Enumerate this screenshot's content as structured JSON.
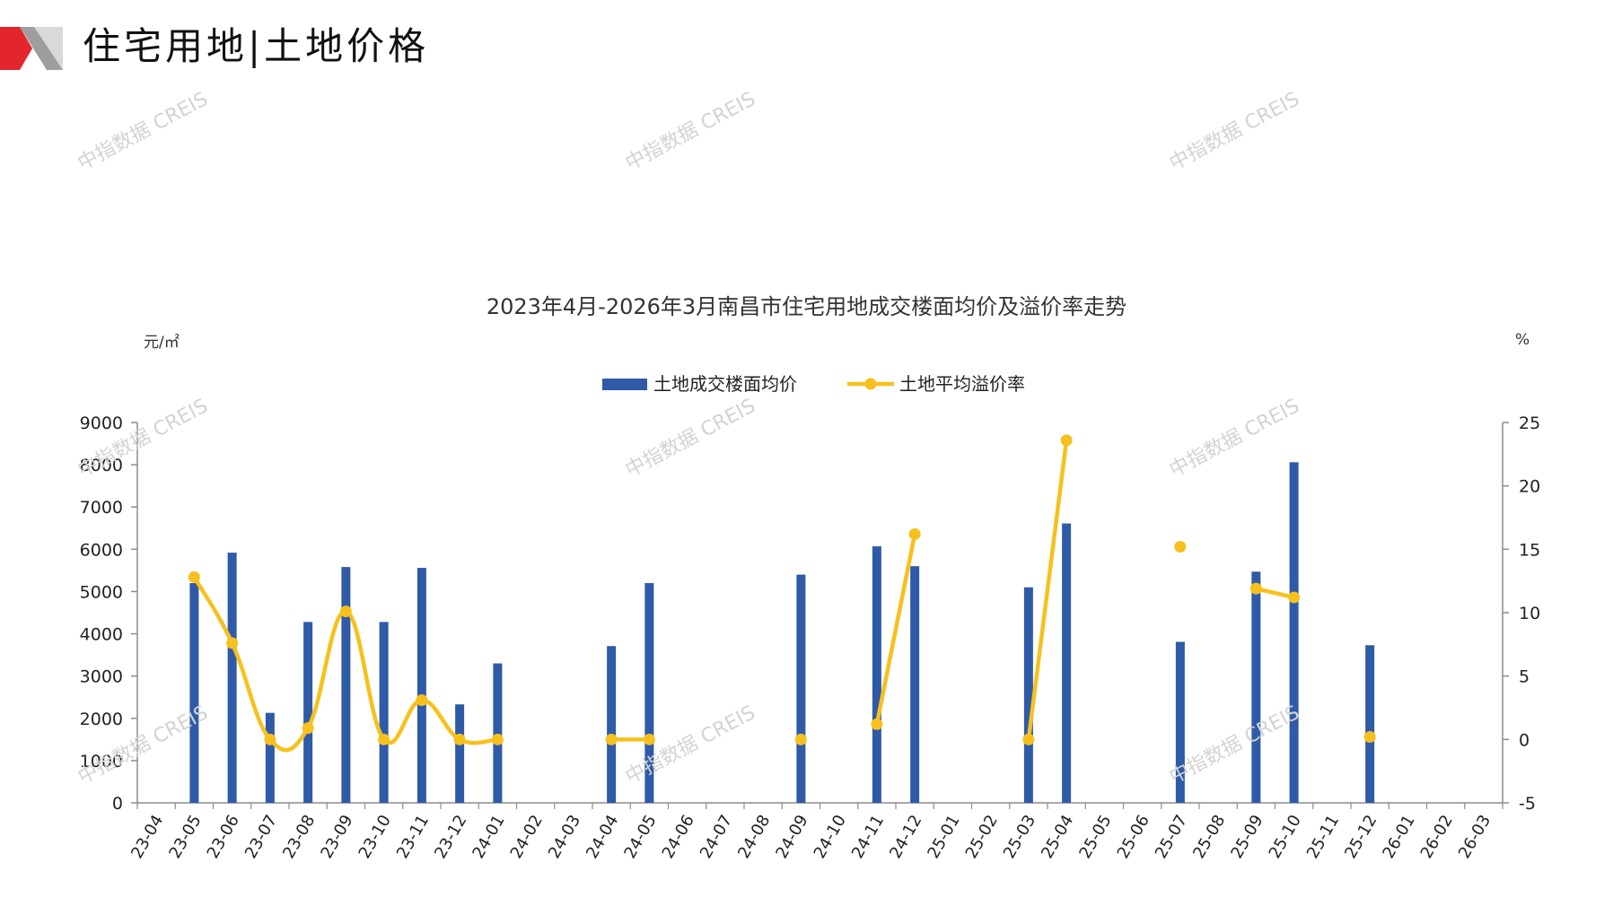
{
  "header": {
    "title": "住宅用地|土地价格",
    "accent_red": "#e3262d",
    "accent_gray": "#9e9e9e"
  },
  "watermark": "中指数据 CREIS",
  "chart_data": {
    "type": "bar+line",
    "title": "2023年4月-2026年3月南昌市住宅用地成交楼面均价及溢价率走势",
    "y_left_unit": "元/㎡",
    "y_right_unit": "%",
    "ylim_left": [
      0,
      9000
    ],
    "ylim_right": [
      -5,
      25
    ],
    "yticks_left": [
      0,
      1000,
      2000,
      3000,
      4000,
      5000,
      6000,
      7000,
      8000,
      9000
    ],
    "yticks_right": [
      -5,
      0,
      5,
      10,
      15,
      20,
      25
    ],
    "legend_position": "top-center",
    "categories": [
      "23-04",
      "23-05",
      "23-06",
      "23-07",
      "23-08",
      "23-09",
      "23-10",
      "23-11",
      "23-12",
      "24-01",
      "24-02",
      "24-03",
      "24-04",
      "24-05",
      "24-06",
      "24-07",
      "24-08",
      "24-09",
      "24-10",
      "24-11",
      "24-12",
      "25-01",
      "25-02",
      "25-03",
      "25-04",
      "25-05",
      "25-06",
      "25-07",
      "25-08",
      "25-09",
      "25-10",
      "25-11",
      "25-12",
      "26-01",
      "26-02",
      "26-03"
    ],
    "series": [
      {
        "name": "土地成交楼面均价",
        "type": "bar",
        "axis": "left",
        "color": "#2e5aa8",
        "values": [
          null,
          5200,
          5920,
          2130,
          4280,
          5580,
          4280,
          5560,
          2330,
          3300,
          null,
          null,
          3710,
          5200,
          null,
          null,
          null,
          5400,
          null,
          6070,
          5600,
          null,
          null,
          5100,
          6610,
          null,
          null,
          3810,
          null,
          5470,
          8060,
          null,
          3730,
          null,
          null,
          null
        ]
      },
      {
        "name": "土地平均溢价率",
        "type": "line",
        "axis": "right",
        "color": "#f6c11e",
        "values": [
          null,
          12.8,
          7.6,
          0,
          0.9,
          10.1,
          0,
          3.1,
          0,
          0,
          null,
          null,
          0,
          0,
          null,
          null,
          null,
          0,
          null,
          1.2,
          16.2,
          null,
          null,
          0,
          23.6,
          null,
          null,
          15.2,
          null,
          11.9,
          11.2,
          null,
          0.2,
          null,
          null,
          null
        ]
      }
    ]
  }
}
